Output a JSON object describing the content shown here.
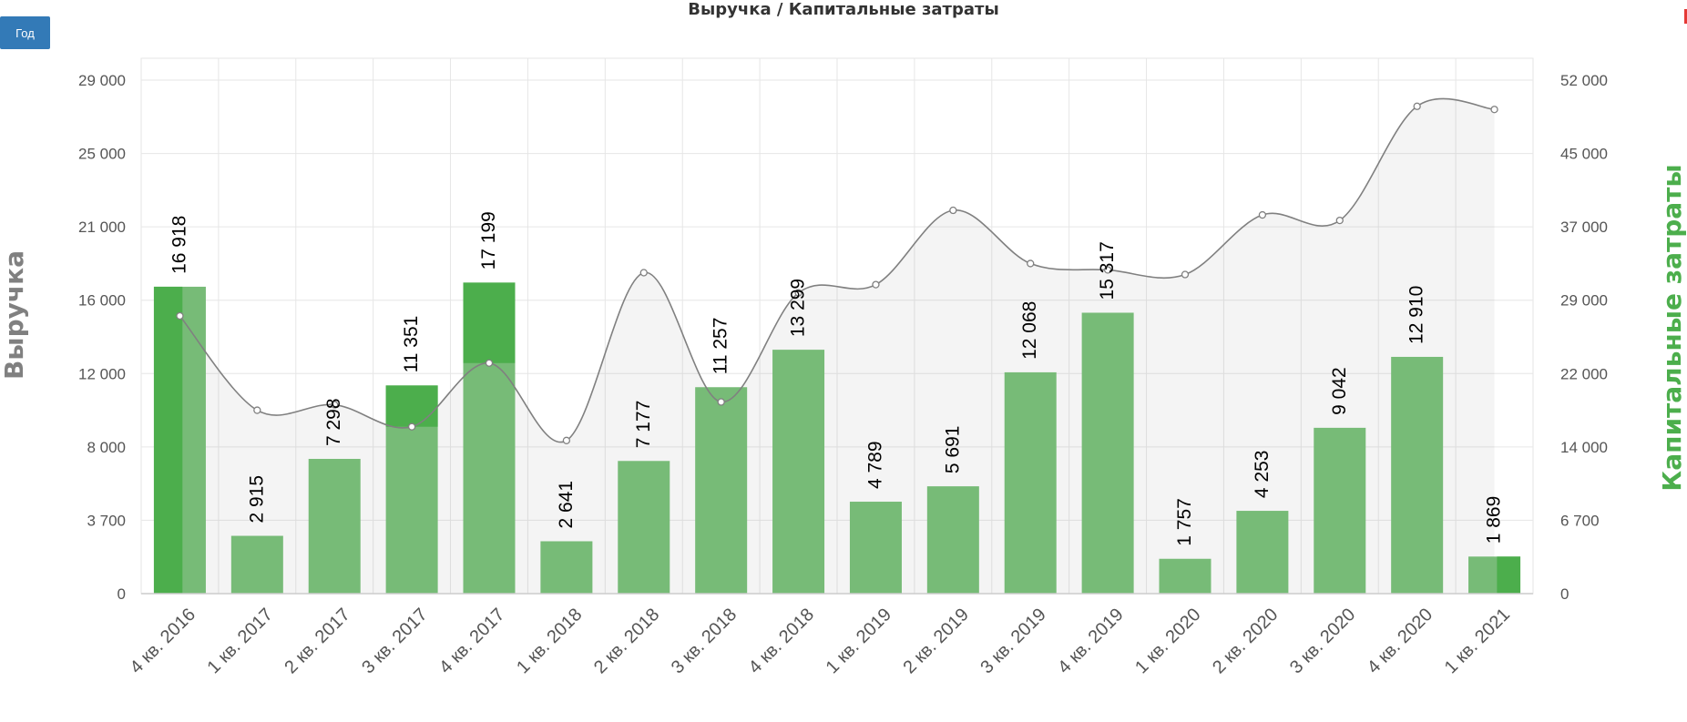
{
  "controls": {
    "period_button": "Год"
  },
  "chart_data": {
    "type": "bar",
    "title": "Выручка / Капитальные затраты",
    "categories": [
      "4 кв. 2016",
      "1 кв. 2017",
      "2 кв. 2017",
      "3 кв. 2017",
      "4 кв. 2017",
      "1 кв. 2018",
      "2 кв. 2018",
      "3 кв. 2018",
      "4 кв. 2018",
      "1 кв. 2019",
      "2 кв. 2019",
      "3 кв. 2019",
      "4 кв. 2019",
      "1 кв. 2020",
      "2 кв. 2020",
      "3 кв. 2020",
      "4 кв. 2020",
      "1 кв. 2021"
    ],
    "left_axis": {
      "label": "Выручка",
      "ticks": [
        0,
        3700,
        8000,
        12000,
        16000,
        21000,
        25000,
        29000
      ],
      "tick_labels": [
        "0",
        "3 700",
        "8 000",
        "12 000",
        "16 000",
        "21 000",
        "25 000",
        "29 000"
      ]
    },
    "right_axis": {
      "label": "Капитальные затраты",
      "ticks": [
        0,
        6700,
        14000,
        22000,
        29000,
        37000,
        45000,
        52000
      ],
      "tick_labels": [
        "0",
        "6 700",
        "14 000",
        "22 000",
        "29 000",
        "37 000",
        "45 000",
        "52 000"
      ]
    },
    "series": [
      {
        "type": "bar",
        "axis": "left",
        "values": [
          16918,
          2915,
          7298,
          11351,
          17199,
          2641,
          7177,
          11257,
          13299,
          4789,
          5691,
          12068,
          15317,
          1757,
          4253,
          9042,
          12910,
          1869
        ],
        "value_labels": [
          "16 918",
          "2 915",
          "7 298",
          "11 351",
          "17 199",
          "2 641",
          "7 177",
          "11 257",
          "13 299",
          "4 789",
          "5 691",
          "12 068",
          "15 317",
          "1 757",
          "4 253",
          "9 042",
          "12 910",
          "1 869"
        ],
        "color": "#77bb77"
      },
      {
        "type": "area-spline",
        "axis": "right",
        "values": [
          27500,
          18000,
          18600,
          16200,
          23000,
          14700,
          32000,
          18900,
          29800,
          30700,
          38800,
          33000,
          32300,
          31800,
          38300,
          37700,
          49500,
          49200
        ],
        "color": "#808080"
      }
    ],
    "highlight_color": "#4cae4c",
    "grid": true
  }
}
